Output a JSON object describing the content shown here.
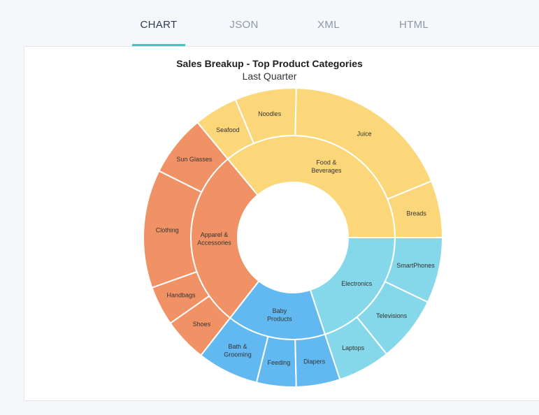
{
  "tabs": [
    {
      "label": "CHART",
      "active": true
    },
    {
      "label": "JSON",
      "active": false
    },
    {
      "label": "XML",
      "active": false
    },
    {
      "label": "HTML",
      "active": false
    }
  ],
  "chart_data": {
    "type": "sunburst",
    "title": "Sales Breakup - Top Product Categories",
    "subtitle": "Last Quarter",
    "categories": [
      {
        "name": "Food & Beverages",
        "label_lines": [
          "Food &",
          "Beverages"
        ],
        "color": "#fcd77a",
        "children": [
          {
            "name": "Breads",
            "value": 13
          },
          {
            "name": "Juice",
            "value": 39
          },
          {
            "name": "Noodles",
            "value": 14
          },
          {
            "name": "Seafood",
            "value": 10
          }
        ]
      },
      {
        "name": "Apparel & Accessories",
        "label_lines": [
          "Apparel &",
          "Accessories"
        ],
        "color": "#f09266",
        "children": [
          {
            "name": "Sun Glasses",
            "value": 14
          },
          {
            "name": "Clothing",
            "value": 27
          },
          {
            "name": "Handbags",
            "value": 9
          },
          {
            "name": "Shoes",
            "value": 10
          }
        ]
      },
      {
        "name": "Baby Products",
        "label_lines": [
          "Baby",
          "Products"
        ],
        "color": "#62b8f0",
        "children": [
          {
            "name": "Bath & Grooming",
            "label_lines": [
              "Bath &",
              "Grooming"
            ],
            "value": 14
          },
          {
            "name": "Feeding",
            "value": 9
          },
          {
            "name": "Diapers",
            "value": 10
          }
        ]
      },
      {
        "name": "Electronics",
        "label_lines": [
          "Electronics"
        ],
        "color": "#85d7ea",
        "children": [
          {
            "name": "Laptops",
            "value": 12
          },
          {
            "name": "Televisions",
            "value": 15
          },
          {
            "name": "SmartPhones",
            "value": 15
          }
        ]
      }
    ]
  }
}
